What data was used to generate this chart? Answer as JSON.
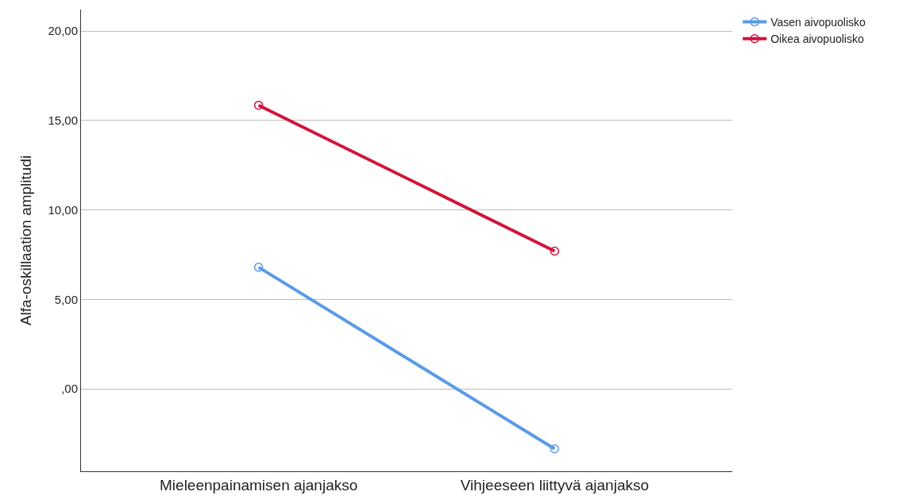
{
  "chart_data": {
    "type": "line",
    "ylabel": "Alfa-oskillaation amplitudi",
    "categories": [
      "Mieleenpainamisen ajanjakso",
      "Vihjeeseen liittyvä ajanjakso"
    ],
    "series": [
      {
        "name": "Vasen aivopuolisko",
        "color": "#5b9be6",
        "values": [
          6.8,
          -3.35
        ]
      },
      {
        "name": "Oikea aivopuolisko",
        "color": "#d2143a",
        "values": [
          15.85,
          7.7
        ]
      }
    ],
    "ylim": [
      -4.6,
      21.2
    ],
    "yticks": [
      {
        "value": 0,
        "label": ",00"
      },
      {
        "value": 5,
        "label": "5,00"
      },
      {
        "value": 10,
        "label": "10,00"
      },
      {
        "value": 15,
        "label": "15,00"
      },
      {
        "value": 20,
        "label": "20,00"
      }
    ],
    "grid": "y",
    "legend": "top right",
    "marker": "circle",
    "line_style": "solid"
  }
}
